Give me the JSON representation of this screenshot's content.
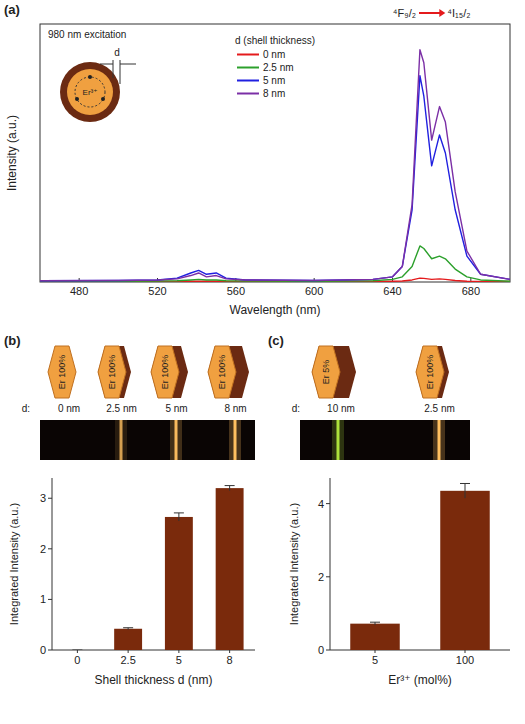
{
  "chart_data": [
    {
      "type": "line",
      "panel": "(a)",
      "title": "980 nm excitation",
      "x_label": "Wavelength (nm)",
      "y_label": "Intensity (a.u.)",
      "legend_title": "d (shell thickness)",
      "annotations": [
        "⁴F₉/₂",
        "⁴I₁₅/₂"
      ],
      "x": [
        460,
        500,
        520,
        530,
        537,
        541,
        545,
        550,
        555,
        565,
        600,
        630,
        640,
        645,
        650,
        654,
        656,
        660,
        664,
        667,
        672,
        678,
        685,
        700
      ],
      "series": [
        {
          "name": "0 nm",
          "color": "#e41a1c",
          "values": [
            0.2,
            0.2,
            0.2,
            0.2,
            0.3,
            0.3,
            0.3,
            0.3,
            0.2,
            0.2,
            0.2,
            0.2,
            0.3,
            0.4,
            0.8,
            1.5,
            1.4,
            1,
            1.2,
            1,
            0.6,
            0.3,
            0.2,
            0.2
          ]
        },
        {
          "name": "2.5 nm",
          "color": "#2ca02c",
          "values": [
            0.3,
            0.3,
            0.4,
            0.5,
            0.8,
            1,
            0.8,
            0.8,
            0.5,
            0.4,
            0.3,
            0.5,
            1,
            2,
            6,
            14,
            13,
            9,
            10,
            9,
            5,
            2,
            0.8,
            0.3
          ]
        },
        {
          "name": "5 nm",
          "color": "#2020e0",
          "values": [
            0.5,
            0.6,
            0.8,
            1.5,
            3.5,
            4.5,
            3,
            3.5,
            1.5,
            0.8,
            0.6,
            1,
            2,
            6,
            28,
            80,
            72,
            45,
            57,
            50,
            28,
            10,
            3,
            1
          ]
        },
        {
          "name": "8 nm",
          "color": "#7b2fa6",
          "values": [
            0.5,
            0.6,
            0.8,
            1.2,
            2.5,
            3.5,
            2,
            2.5,
            1.2,
            0.8,
            0.6,
            1,
            2,
            6,
            30,
            90,
            85,
            55,
            68,
            62,
            35,
            12,
            3,
            1
          ]
        }
      ],
      "xlim": [
        460,
        700
      ],
      "xticks": [
        480,
        520,
        560,
        600,
        640,
        680
      ],
      "ylim": [
        0,
        100
      ],
      "tick_labels": "x",
      "legend": "upper center"
    },
    {
      "type": "bar",
      "panel": "(b)",
      "x_label": "Shell thickness d (nm)",
      "y_label": "Integrated Intensity (a.u.)",
      "categories": [
        "0",
        "2.5",
        "5",
        "8"
      ],
      "values": [
        0,
        0.42,
        2.63,
        3.2
      ],
      "errors": [
        0,
        0.02,
        0.08,
        0.05
      ],
      "color": "#7a2a0c",
      "ylim": [
        0,
        3.4
      ],
      "yticks": [
        0,
        1,
        2,
        3
      ]
    },
    {
      "type": "bar",
      "panel": "(c)",
      "x_label": "Er³⁺ (mol%)",
      "y_label": "Integrated Intensity (a.u.)",
      "categories": [
        "5",
        "100"
      ],
      "values": [
        0.72,
        4.35
      ],
      "errors": [
        0.04,
        0.2
      ],
      "color": "#7a2a0c",
      "ylim": [
        0,
        4.7
      ],
      "yticks": [
        0,
        2,
        4
      ]
    }
  ],
  "schematics": {
    "a": {
      "d": "d",
      "ion": "Er³⁺"
    },
    "b": {
      "d_label": "d:",
      "particles": [
        {
          "label": "Er 100%",
          "d": "0 nm"
        },
        {
          "label": "Er 100%",
          "d": "2.5 nm"
        },
        {
          "label": "Er 100%",
          "d": "5 nm"
        },
        {
          "label": "Er 100%",
          "d": "8 nm"
        }
      ]
    },
    "c": {
      "d_label": "d:",
      "particles": [
        {
          "label": "Er 5%",
          "d": "10 nm"
        },
        {
          "label": "Er 100%",
          "d": "2.5 nm"
        }
      ]
    }
  }
}
